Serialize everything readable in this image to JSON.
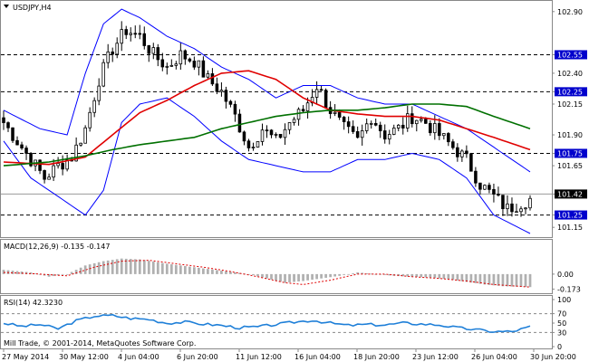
{
  "symbol": "USDJPY,H4",
  "copyright": "Mill Trade, © 2001-2014, MetaQuotes Software Corp.",
  "colors": {
    "up": "#000000",
    "down": "#000000",
    "bollinger": "#0000ff",
    "ma_fast": "#e00000",
    "ma_slow": "#007000",
    "level_line": "#000000",
    "tag_bg": "#0000cc",
    "macd_hist": "#b0b0b0",
    "macd_signal": "#e00000",
    "rsi_line": "#1e7fd8",
    "frame": "#888888"
  },
  "chart_data": [
    {
      "type": "candlestick",
      "title": "USDJPY,H4",
      "ylim": [
        101.1,
        102.95
      ],
      "yticks": [
        "102.90",
        "102.55",
        "102.40",
        "102.25",
        "102.15",
        "101.90",
        "101.75",
        "101.65",
        "101.42",
        "101.25",
        "101.15"
      ],
      "highlight_levels": [
        {
          "label": "102.55",
          "value": 102.55
        },
        {
          "label": "102.25",
          "value": 102.25
        },
        {
          "label": "101.75",
          "value": 101.75
        },
        {
          "label": "101.25",
          "value": 101.25
        }
      ],
      "current_price": {
        "label": "101.42",
        "value": 101.42
      },
      "x_labels": [
        "27 May 2014",
        "30 May 12:00",
        "4 Jun 04:00",
        "6 Jun 20:00",
        "11 Jun 12:00",
        "16 Jun 04:00",
        "18 Jun 20:00",
        "23 Jun 12:00",
        "26 Jun 04:00",
        "30 Jun 20:00"
      ],
      "close_path": [
        [
          0,
          102.0
        ],
        [
          3,
          101.85
        ],
        [
          6,
          101.7
        ],
        [
          9,
          101.55
        ],
        [
          12,
          101.65
        ],
        [
          15,
          101.72
        ],
        [
          18,
          101.95
        ],
        [
          21,
          102.35
        ],
        [
          24,
          102.6
        ],
        [
          27,
          102.75
        ],
        [
          30,
          102.7
        ],
        [
          33,
          102.55
        ],
        [
          36,
          102.45
        ],
        [
          39,
          102.55
        ],
        [
          42,
          102.5
        ],
        [
          45,
          102.35
        ],
        [
          48,
          102.25
        ],
        [
          51,
          102.05
        ],
        [
          54,
          101.8
        ],
        [
          57,
          101.95
        ],
        [
          60,
          101.85
        ],
        [
          63,
          102.0
        ],
        [
          66,
          102.1
        ],
        [
          69,
          102.3
        ],
        [
          72,
          102.1
        ],
        [
          75,
          101.95
        ],
        [
          78,
          101.85
        ],
        [
          81,
          102.05
        ],
        [
          84,
          101.9
        ],
        [
          87,
          101.95
        ],
        [
          90,
          102.05
        ],
        [
          93,
          102.0
        ],
        [
          96,
          101.9
        ],
        [
          99,
          101.8
        ],
        [
          102,
          101.7
        ],
        [
          105,
          101.5
        ],
        [
          108,
          101.4
        ],
        [
          111,
          101.3
        ],
        [
          114,
          101.35
        ],
        [
          116,
          101.38
        ]
      ],
      "candle_count": 117,
      "bollinger_upper": [
        [
          0,
          102.1
        ],
        [
          8,
          101.95
        ],
        [
          14,
          101.9
        ],
        [
          18,
          102.4
        ],
        [
          22,
          102.8
        ],
        [
          26,
          102.92
        ],
        [
          30,
          102.85
        ],
        [
          36,
          102.7
        ],
        [
          42,
          102.6
        ],
        [
          48,
          102.45
        ],
        [
          54,
          102.35
        ],
        [
          60,
          102.2
        ],
        [
          66,
          102.3
        ],
        [
          72,
          102.3
        ],
        [
          78,
          102.2
        ],
        [
          84,
          102.15
        ],
        [
          90,
          102.15
        ],
        [
          96,
          102.05
        ],
        [
          102,
          101.95
        ],
        [
          108,
          101.8
        ],
        [
          116,
          101.6
        ]
      ],
      "bollinger_lower": [
        [
          0,
          101.85
        ],
        [
          6,
          101.55
        ],
        [
          12,
          101.4
        ],
        [
          18,
          101.25
        ],
        [
          22,
          101.45
        ],
        [
          26,
          102.0
        ],
        [
          30,
          102.15
        ],
        [
          36,
          102.2
        ],
        [
          42,
          102.05
        ],
        [
          48,
          101.85
        ],
        [
          54,
          101.7
        ],
        [
          60,
          101.65
        ],
        [
          66,
          101.6
        ],
        [
          72,
          101.6
        ],
        [
          78,
          101.7
        ],
        [
          84,
          101.7
        ],
        [
          90,
          101.75
        ],
        [
          96,
          101.7
        ],
        [
          102,
          101.55
        ],
        [
          108,
          101.25
        ],
        [
          116,
          101.1
        ]
      ],
      "ma_fast": [
        [
          0,
          101.68
        ],
        [
          10,
          101.66
        ],
        [
          18,
          101.72
        ],
        [
          24,
          101.9
        ],
        [
          30,
          102.08
        ],
        [
          36,
          102.18
        ],
        [
          42,
          102.3
        ],
        [
          48,
          102.4
        ],
        [
          54,
          102.42
        ],
        [
          60,
          102.35
        ],
        [
          66,
          102.2
        ],
        [
          72,
          102.1
        ],
        [
          78,
          102.07
        ],
        [
          84,
          102.05
        ],
        [
          90,
          102.05
        ],
        [
          96,
          102.02
        ],
        [
          102,
          101.95
        ],
        [
          108,
          101.88
        ],
        [
          116,
          101.78
        ]
      ],
      "ma_slow": [
        [
          0,
          101.65
        ],
        [
          10,
          101.68
        ],
        [
          18,
          101.73
        ],
        [
          24,
          101.78
        ],
        [
          30,
          101.82
        ],
        [
          36,
          101.85
        ],
        [
          42,
          101.88
        ],
        [
          48,
          101.95
        ],
        [
          54,
          102.0
        ],
        [
          60,
          102.05
        ],
        [
          66,
          102.08
        ],
        [
          72,
          102.1
        ],
        [
          78,
          102.1
        ],
        [
          84,
          102.12
        ],
        [
          90,
          102.15
        ],
        [
          96,
          102.15
        ],
        [
          102,
          102.13
        ],
        [
          108,
          102.05
        ],
        [
          116,
          101.95
        ]
      ]
    },
    {
      "type": "histogram",
      "title": "MACD(12,26,9) -0.135 -0.147",
      "ylim": [
        -0.2,
        0.25
      ],
      "yticks": [
        "0.00",
        "-0.173"
      ],
      "histogram": [
        [
          0,
          0.05
        ],
        [
          6,
          0.02
        ],
        [
          10,
          -0.03
        ],
        [
          14,
          0.0
        ],
        [
          18,
          0.1
        ],
        [
          22,
          0.15
        ],
        [
          26,
          0.18
        ],
        [
          30,
          0.17
        ],
        [
          36,
          0.12
        ],
        [
          42,
          0.08
        ],
        [
          48,
          0.04
        ],
        [
          54,
          0.0
        ],
        [
          58,
          -0.05
        ],
        [
          62,
          -0.1
        ],
        [
          66,
          -0.08
        ],
        [
          70,
          -0.05
        ],
        [
          74,
          -0.02
        ],
        [
          78,
          0.02
        ],
        [
          82,
          0.0
        ],
        [
          86,
          -0.02
        ],
        [
          90,
          -0.03
        ],
        [
          94,
          -0.04
        ],
        [
          98,
          -0.06
        ],
        [
          102,
          -0.09
        ],
        [
          106,
          -0.12
        ],
        [
          110,
          -0.14
        ],
        [
          116,
          -0.15
        ]
      ],
      "signal": [
        [
          0,
          0.02
        ],
        [
          8,
          0.0
        ],
        [
          14,
          -0.02
        ],
        [
          20,
          0.08
        ],
        [
          26,
          0.15
        ],
        [
          32,
          0.16
        ],
        [
          38,
          0.12
        ],
        [
          44,
          0.08
        ],
        [
          50,
          0.03
        ],
        [
          56,
          -0.03
        ],
        [
          62,
          -0.1
        ],
        [
          66,
          -0.12
        ],
        [
          72,
          -0.07
        ],
        [
          78,
          0.0
        ],
        [
          84,
          0.0
        ],
        [
          90,
          -0.03
        ],
        [
          96,
          -0.05
        ],
        [
          102,
          -0.08
        ],
        [
          108,
          -0.12
        ],
        [
          116,
          -0.15
        ]
      ]
    },
    {
      "type": "line",
      "title": "RSI(14) 42.3230",
      "ylim": [
        0,
        100
      ],
      "yticks": [
        "100",
        "70",
        "50",
        "30",
        "0"
      ],
      "levels": [
        70,
        30
      ],
      "values": [
        [
          0,
          50
        ],
        [
          4,
          43
        ],
        [
          8,
          47
        ],
        [
          12,
          38
        ],
        [
          16,
          55
        ],
        [
          20,
          65
        ],
        [
          24,
          66
        ],
        [
          28,
          60
        ],
        [
          32,
          58
        ],
        [
          36,
          50
        ],
        [
          40,
          52
        ],
        [
          44,
          48
        ],
        [
          48,
          45
        ],
        [
          52,
          40
        ],
        [
          56,
          42
        ],
        [
          60,
          47
        ],
        [
          64,
          52
        ],
        [
          68,
          56
        ],
        [
          72,
          50
        ],
        [
          76,
          45
        ],
        [
          80,
          47
        ],
        [
          84,
          46
        ],
        [
          88,
          50
        ],
        [
          92,
          48
        ],
        [
          96,
          46
        ],
        [
          100,
          40
        ],
        [
          104,
          36
        ],
        [
          108,
          32
        ],
        [
          112,
          32
        ],
        [
          116,
          42
        ]
      ]
    }
  ]
}
